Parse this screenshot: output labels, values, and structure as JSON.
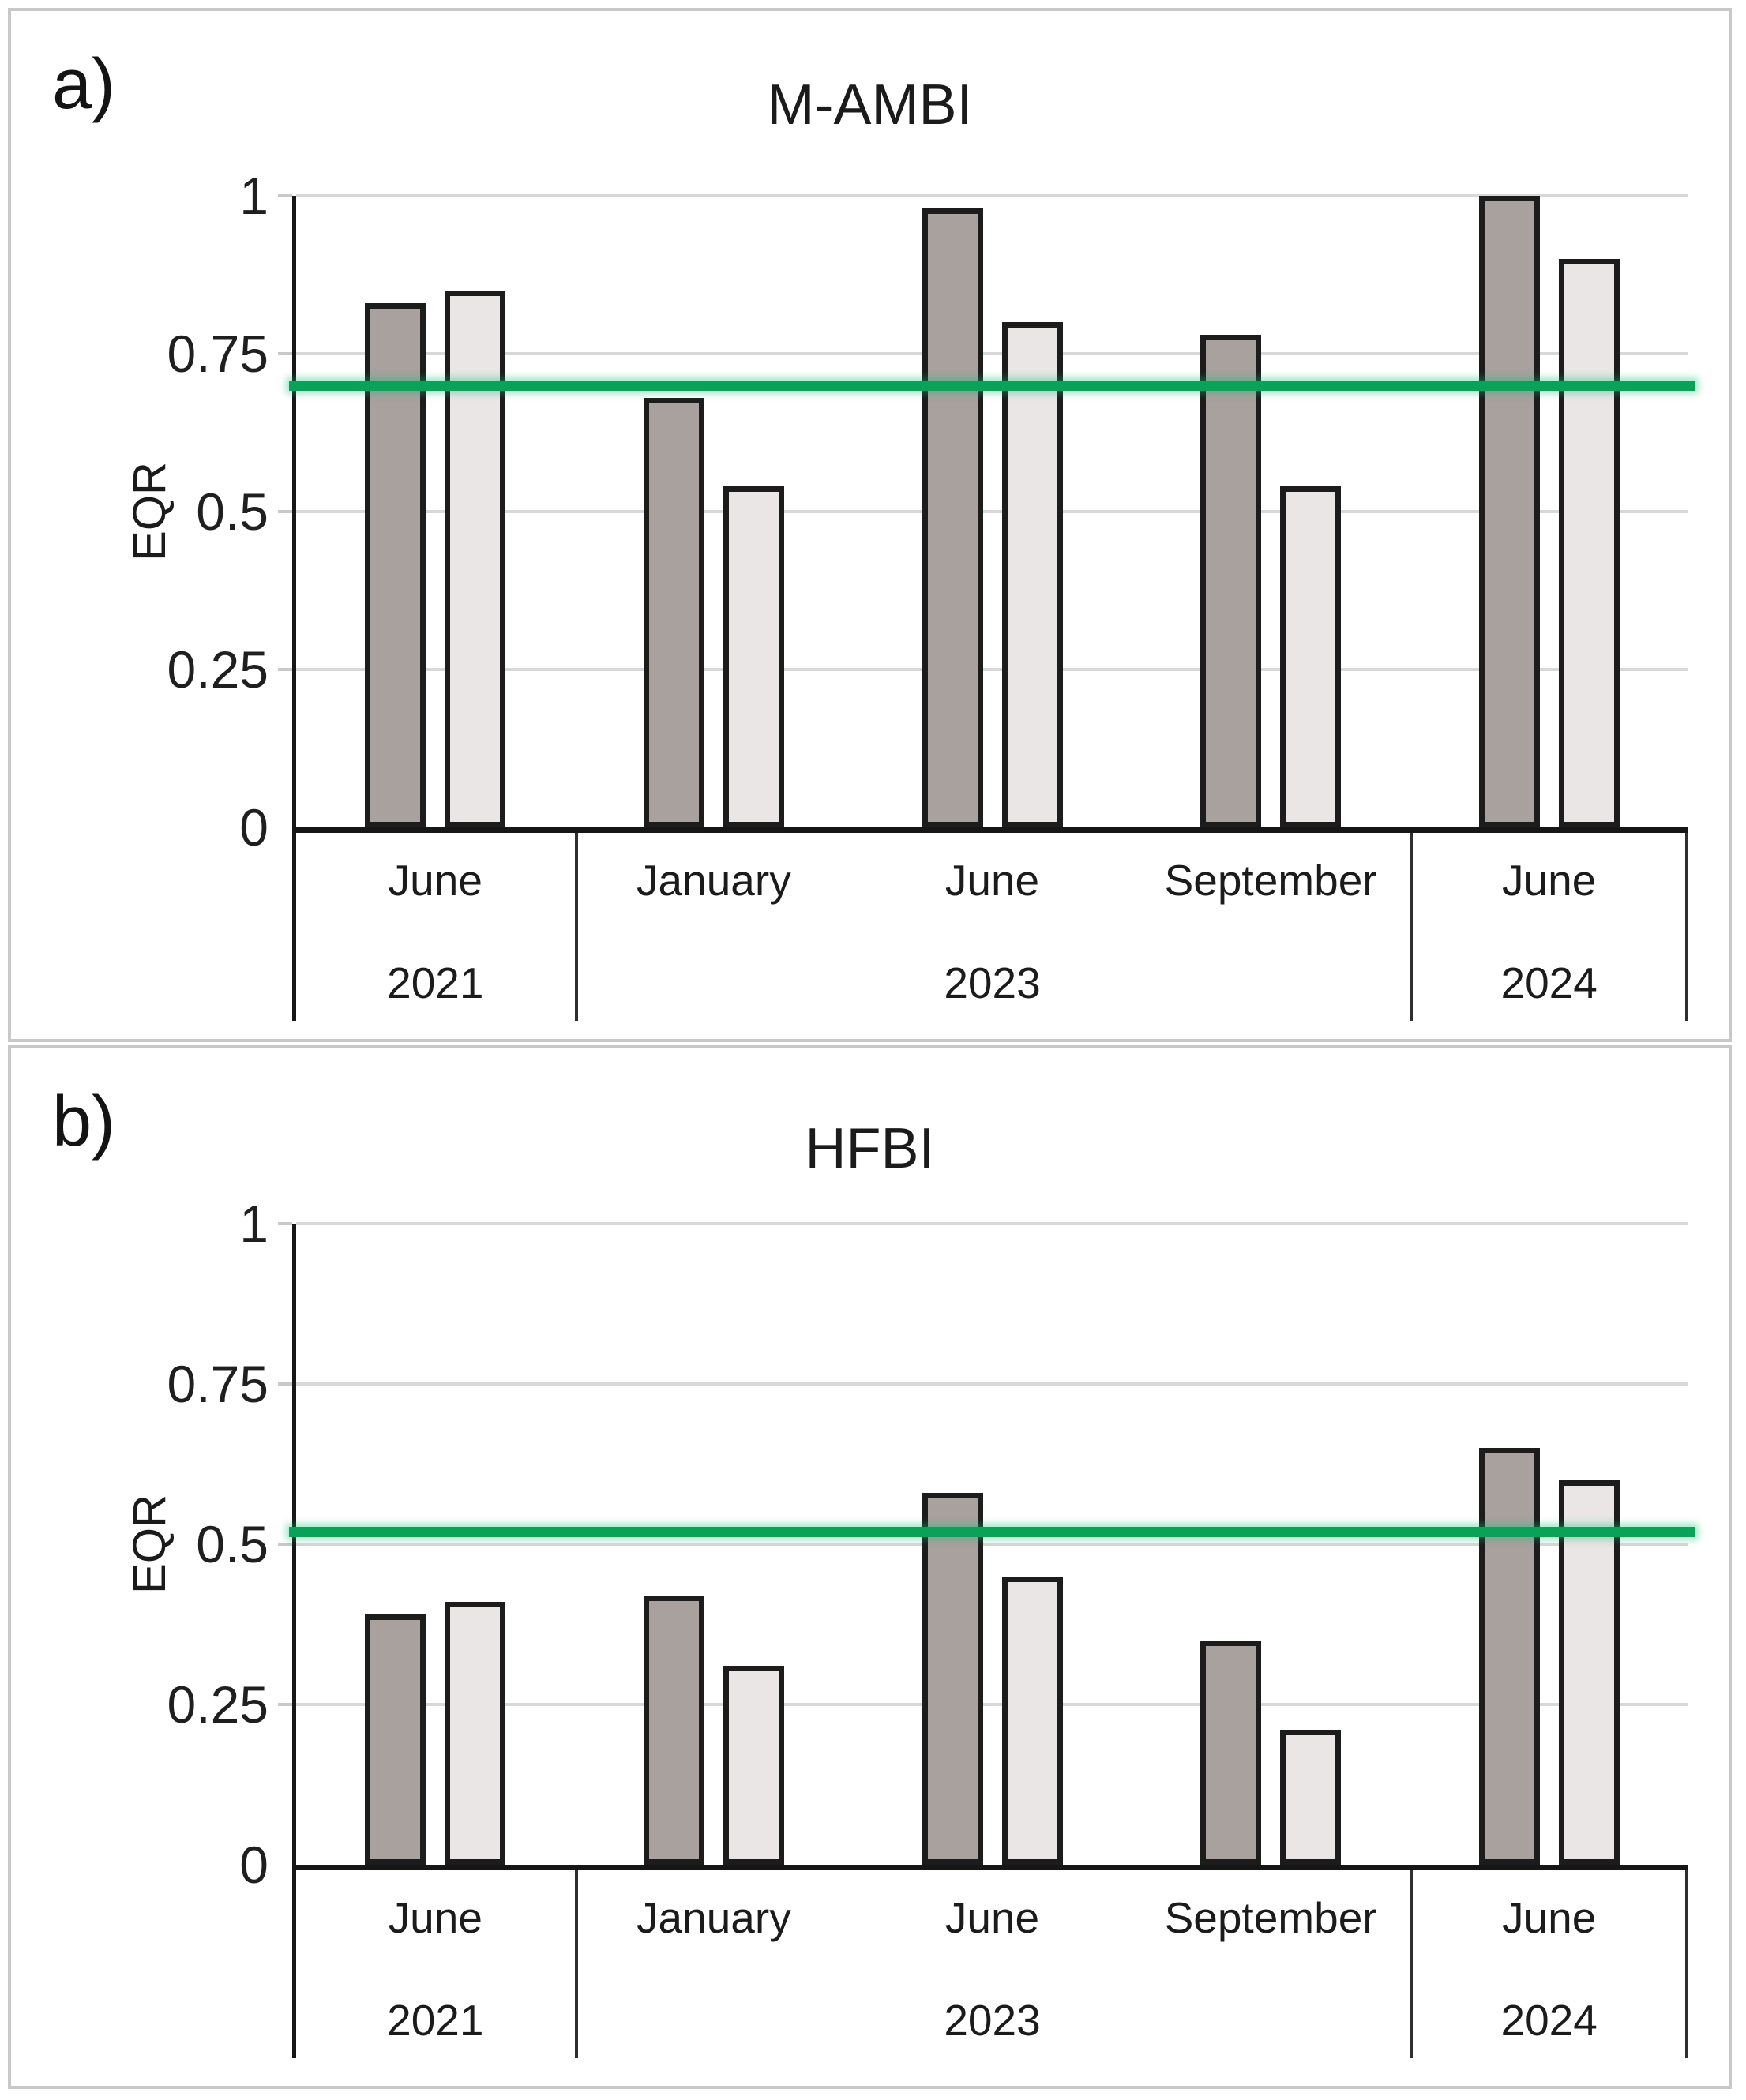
{
  "colors": {
    "dark_bar_fill": "#a8a19e",
    "light_bar_fill": "#e9e6e5",
    "bar_outline": "#1c1c1c",
    "gridline": "#d8d8d8",
    "axis": "#161616",
    "panel_frame": "#c8c8c8",
    "reference_line_green": "#0aa158"
  },
  "chart_data": [
    {
      "type": "bar",
      "panel_label": "a)",
      "title": "M-AMBI",
      "ylabel": "EQR",
      "ylim": [
        0,
        1
      ],
      "grid": true,
      "legend": "none",
      "yticks": [
        {
          "v": 1,
          "label": "1"
        },
        {
          "v": 0.75,
          "label": "0.75"
        },
        {
          "v": 0.5,
          "label": "0.5"
        },
        {
          "v": 0.25,
          "label": "0.25"
        },
        {
          "v": 0,
          "label": "0"
        }
      ],
      "categories": [
        "June 2021",
        "January 2023",
        "June 2023",
        "September 2023",
        "June 2024"
      ],
      "x_axis_months": [
        "June",
        "January",
        "June",
        "September",
        "June"
      ],
      "x_axis_years": [
        {
          "label": "2021",
          "span": 1
        },
        {
          "label": "2023",
          "span": 3
        },
        {
          "label": "2024",
          "span": 1
        }
      ],
      "series": [
        {
          "name": "dark-gray bars",
          "color": "#a8a19e",
          "values": [
            0.83,
            0.68,
            0.98,
            0.78,
            1.0
          ]
        },
        {
          "name": "light-gray bars",
          "color": "#e9e6e5",
          "values": [
            0.85,
            0.54,
            0.8,
            0.54,
            0.9
          ]
        }
      ],
      "reference_line": {
        "value": 0.7,
        "color": "#0aa158"
      }
    },
    {
      "type": "bar",
      "panel_label": "b)",
      "title": "HFBI",
      "ylabel": "EQR",
      "ylim": [
        0,
        1
      ],
      "grid": true,
      "legend": "none",
      "yticks": [
        {
          "v": 1,
          "label": "1"
        },
        {
          "v": 0.75,
          "label": "0.75"
        },
        {
          "v": 0.5,
          "label": "0.5"
        },
        {
          "v": 0.25,
          "label": "0.25"
        },
        {
          "v": 0,
          "label": "0"
        }
      ],
      "categories": [
        "June 2021",
        "January 2023",
        "June 2023",
        "September 2023",
        "June 2024"
      ],
      "x_axis_months": [
        "June",
        "January",
        "June",
        "September",
        "June"
      ],
      "x_axis_years": [
        {
          "label": "2021",
          "span": 1
        },
        {
          "label": "2023",
          "span": 3
        },
        {
          "label": "2024",
          "span": 1
        }
      ],
      "series": [
        {
          "name": "dark-gray bars",
          "color": "#a8a19e",
          "values": [
            0.39,
            0.42,
            0.58,
            0.35,
            0.65
          ]
        },
        {
          "name": "light-gray bars",
          "color": "#e9e6e5",
          "values": [
            0.41,
            0.31,
            0.45,
            0.21,
            0.6
          ]
        }
      ],
      "reference_line": {
        "value": 0.52,
        "color": "#0aa158"
      }
    }
  ]
}
